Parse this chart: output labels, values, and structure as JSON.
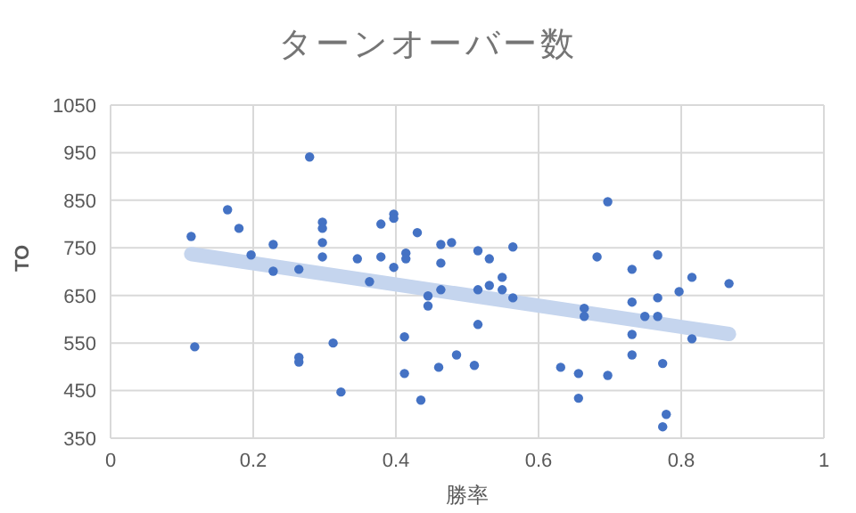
{
  "chart_data": {
    "type": "scatter",
    "title": "ターンオーバー数",
    "xlabel": "勝率",
    "ylabel": "TO",
    "xlim": [
      0,
      1
    ],
    "xticks": [
      0,
      0.2,
      0.4,
      0.6,
      0.8,
      1
    ],
    "ylim": [
      350,
      1050
    ],
    "yticks": [
      350,
      450,
      550,
      650,
      750,
      850,
      950,
      1050
    ],
    "grid": true,
    "series": [
      {
        "color": "#4472c4",
        "marker": "circle",
        "x": [
          0.113,
          0.118,
          0.164,
          0.18,
          0.197,
          0.228,
          0.228,
          0.264,
          0.264,
          0.264,
          0.279,
          0.297,
          0.297,
          0.297,
          0.297,
          0.312,
          0.323,
          0.346,
          0.363,
          0.379,
          0.379,
          0.397,
          0.397,
          0.397,
          0.412,
          0.412,
          0.414,
          0.414,
          0.43,
          0.435,
          0.445,
          0.445,
          0.46,
          0.463,
          0.463,
          0.463,
          0.478,
          0.485,
          0.51,
          0.515,
          0.515,
          0.515,
          0.531,
          0.531,
          0.549,
          0.549,
          0.564,
          0.564,
          0.631,
          0.656,
          0.656,
          0.664,
          0.664,
          0.682,
          0.697,
          0.697,
          0.731,
          0.731,
          0.731,
          0.731,
          0.749,
          0.767,
          0.767,
          0.767,
          0.774,
          0.779,
          0.774,
          0.797,
          0.815,
          0.815,
          0.867
        ],
        "values": [
          774,
          542,
          830,
          791,
          735,
          757,
          701,
          705,
          520,
          510,
          941,
          804,
          791,
          761,
          731,
          550,
          447,
          727,
          679,
          800,
          731,
          821,
          812,
          709,
          563,
          486,
          739,
          727,
          782,
          430,
          649,
          628,
          499,
          757,
          718,
          662,
          761,
          525,
          503,
          744,
          662,
          589,
          727,
          671,
          688,
          662,
          752,
          645,
          499,
          486,
          434,
          623,
          606,
          731,
          847,
          482,
          705,
          636,
          568,
          525,
          606,
          735,
          645,
          606,
          507,
          400,
          374,
          658,
          688,
          559,
          675
        ]
      },
      {
        "type": "line",
        "color": "#c5d5ee",
        "x": [
          0.113,
          0.867
        ],
        "values": [
          737,
          569
        ]
      }
    ]
  }
}
